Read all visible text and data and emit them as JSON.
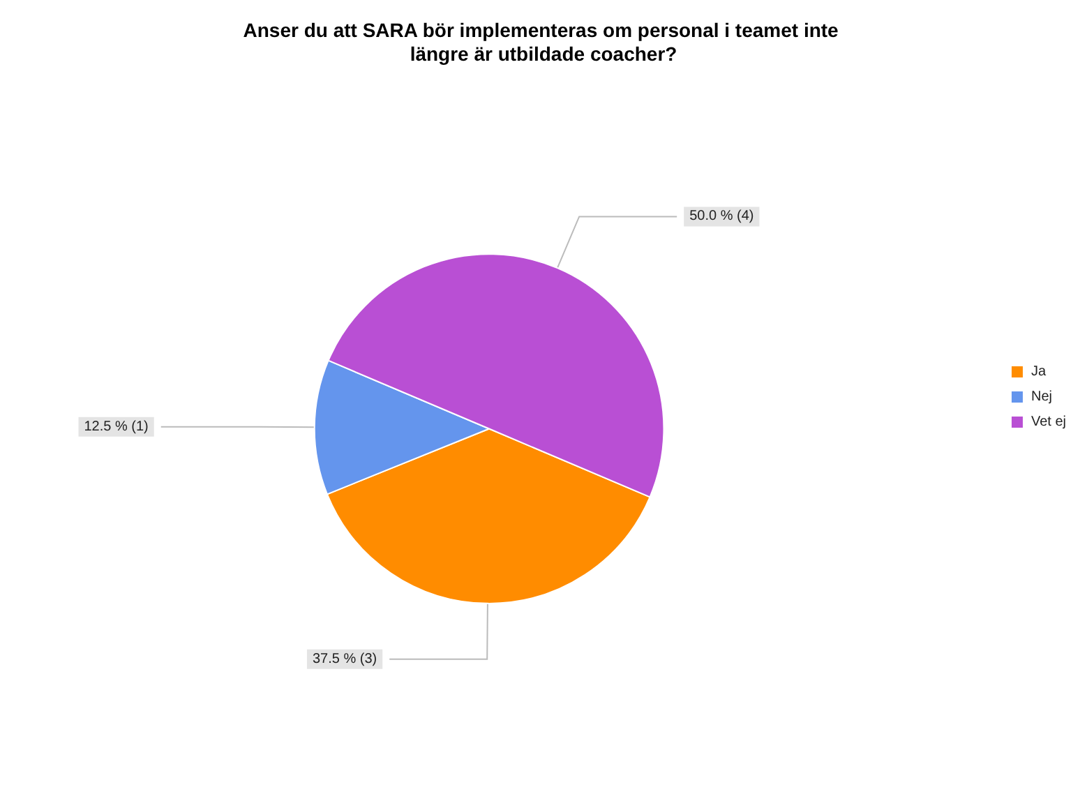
{
  "chart_data": {
    "type": "pie",
    "title": "Anser du att SARA bör implementeras om personal i teamet inte längre är utbildade coacher?",
    "categories": [
      "Ja",
      "Nej",
      "Vet ej"
    ],
    "values": [
      3,
      1,
      4
    ],
    "value_labels": [
      "37.5 % (3)",
      "12.5 % (1)",
      "50.0 % (4)"
    ],
    "colors": [
      "#ff8c00",
      "#6495ed",
      "#b94fd4"
    ],
    "legend": "right"
  }
}
